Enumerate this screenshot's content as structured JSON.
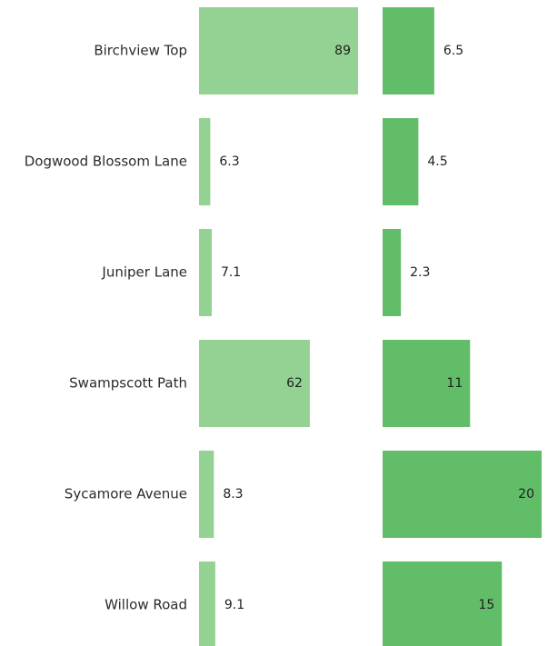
{
  "chart_data": {
    "type": "bar",
    "orientation": "horizontal",
    "categories": [
      "Birchview Top",
      "Dogwood Blossom Lane",
      "Juniper Lane",
      "Swampscott Path",
      "Sycamore Avenue",
      "Willow Road"
    ],
    "series": [
      {
        "values": [
          89,
          6.3,
          7.1,
          62,
          8.3,
          9.1
        ],
        "color": "#93d292",
        "xlim": [
          0,
          89
        ]
      },
      {
        "values": [
          6.5,
          4.5,
          2.3,
          11,
          20,
          15
        ],
        "color": "#62bd69",
        "xlim": [
          0,
          20
        ]
      }
    ],
    "grid": false,
    "legend": false
  }
}
